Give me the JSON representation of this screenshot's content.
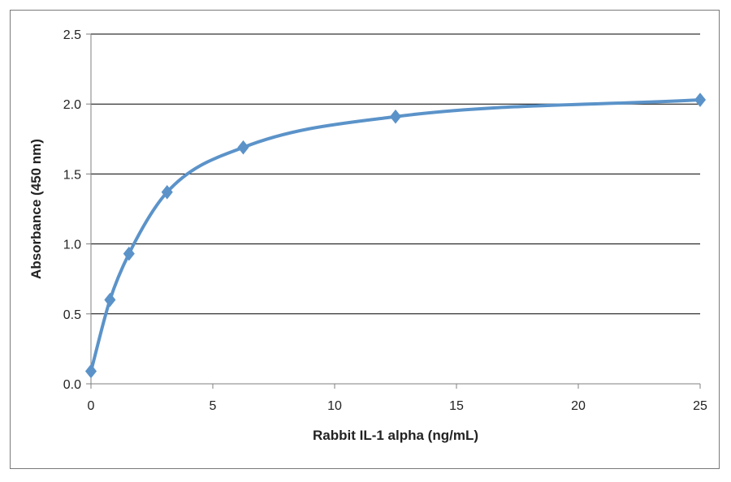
{
  "chart_data": {
    "type": "line",
    "title": "",
    "xlabel": "Rabbit IL-1 alpha (ng/mL)",
    "ylabel": "Absorbance (450 nm)",
    "xlim": [
      0,
      25
    ],
    "ylim": [
      0,
      2.5
    ],
    "x_ticks": [
      "0",
      "5",
      "10",
      "15",
      "20",
      "25"
    ],
    "y_ticks": [
      "0.0",
      "0.5",
      "1.0",
      "1.5",
      "2.0",
      "2.5"
    ],
    "grid": "horizontal",
    "legend": "none",
    "series": [
      {
        "x": [
          0,
          0.78,
          1.56,
          3.125,
          6.25,
          12.5,
          25
        ],
        "y": [
          0.09,
          0.6,
          0.93,
          1.37,
          1.69,
          1.91,
          2.03
        ],
        "marker": "diamond",
        "smooth": true
      }
    ],
    "colors": {
      "series": "#5b93c9",
      "grid": "#000000",
      "axis": "#7f7f7f"
    }
  }
}
